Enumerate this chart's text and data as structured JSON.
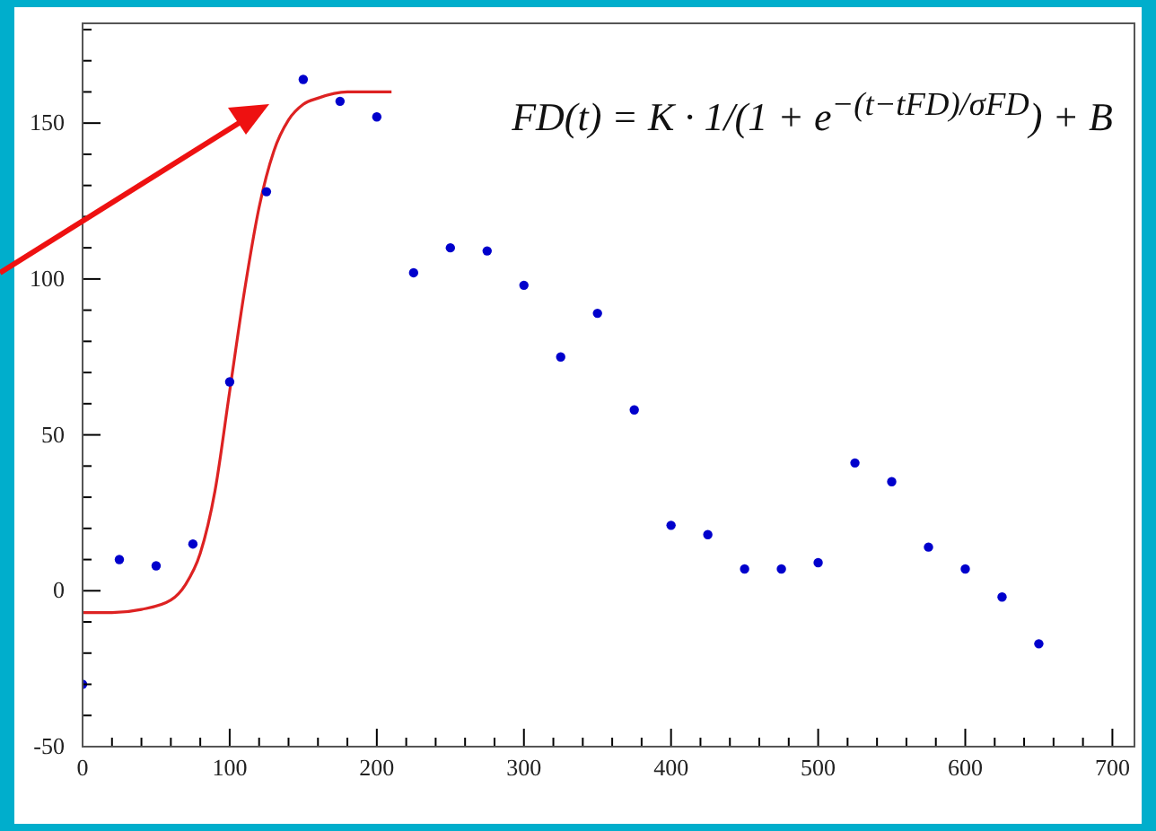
{
  "chart_data": {
    "type": "scatter",
    "xlim": [
      0,
      715
    ],
    "ylim": [
      -50,
      182
    ],
    "xticks": [
      0,
      {
        "value": 20,
        "label": null
      },
      {
        "value": 40,
        "label": null
      },
      {
        "value": 60,
        "label": null
      },
      {
        "value": 80,
        "label": null
      },
      100,
      {
        "value": 120,
        "label": null
      },
      {
        "value": 140,
        "label": null
      },
      {
        "value": 160,
        "label": null
      },
      {
        "value": 180,
        "label": null
      },
      200,
      {
        "value": 220,
        "label": null
      },
      {
        "value": 240,
        "label": null
      },
      {
        "value": 260,
        "label": null
      },
      {
        "value": 280,
        "label": null
      },
      300,
      {
        "value": 320,
        "label": null
      },
      {
        "value": 340,
        "label": null
      },
      {
        "value": 360,
        "label": null
      },
      {
        "value": 380,
        "label": null
      },
      400,
      {
        "value": 420,
        "label": null
      },
      {
        "value": 440,
        "label": null
      },
      {
        "value": 460,
        "label": null
      },
      {
        "value": 480,
        "label": null
      },
      500,
      {
        "value": 520,
        "label": null
      },
      {
        "value": 540,
        "label": null
      },
      {
        "value": 560,
        "label": null
      },
      {
        "value": 580,
        "label": null
      },
      600,
      {
        "value": 620,
        "label": null
      },
      {
        "value": 640,
        "label": null
      },
      {
        "value": 660,
        "label": null
      },
      {
        "value": 680,
        "label": null
      },
      700
    ],
    "yticks": [
      -50,
      {
        "value": -40,
        "label": null
      },
      {
        "value": -30,
        "label": null
      },
      {
        "value": -20,
        "label": null
      },
      {
        "value": -10,
        "label": null
      },
      0,
      {
        "value": 10,
        "label": null
      },
      {
        "value": 20,
        "label": null
      },
      {
        "value": 30,
        "label": null
      },
      {
        "value": 40,
        "label": null
      },
      50,
      {
        "value": 60,
        "label": null
      },
      {
        "value": 70,
        "label": null
      },
      {
        "value": 80,
        "label": null
      },
      {
        "value": 90,
        "label": null
      },
      100,
      {
        "value": 110,
        "label": null
      },
      {
        "value": 120,
        "label": null
      },
      {
        "value": 130,
        "label": null
      },
      {
        "value": 140,
        "label": null
      },
      150,
      {
        "value": 160,
        "label": null
      },
      {
        "value": 170,
        "label": null
      },
      {
        "value": 180,
        "label": null
      }
    ],
    "grid": false,
    "legend": false,
    "marker": "circle",
    "annotations": [
      "FD(t) = K · 1/(1 + e$^{−(t−tFD)/σFD}$) + B"
    ],
    "series": [
      {
        "color": "#0000cc",
        "x": [
          0,
          25,
          50,
          75,
          100,
          125,
          150,
          175,
          200,
          225,
          250,
          275,
          300,
          325,
          350,
          375,
          400,
          425,
          450,
          475,
          500,
          525,
          550,
          575,
          600,
          625,
          650
        ],
        "values": [
          -30,
          10,
          8,
          15,
          67,
          128,
          164,
          157,
          152,
          102,
          110,
          109,
          98,
          75,
          89,
          58,
          21,
          18,
          7,
          7,
          9,
          41,
          35,
          14,
          7,
          -2,
          -17
        ]
      },
      {
        "type": "line",
        "color": "#dd2222",
        "marker": "none",
        "x": [
          0,
          20,
          40,
          60,
          70,
          80,
          90,
          100,
          110,
          120,
          130,
          140,
          150,
          160,
          180,
          210
        ],
        "values": [
          -7,
          -7,
          -6,
          -3,
          2,
          12,
          32,
          64,
          96,
          123,
          141,
          151,
          156,
          158,
          160,
          160
        ]
      }
    ]
  }
}
